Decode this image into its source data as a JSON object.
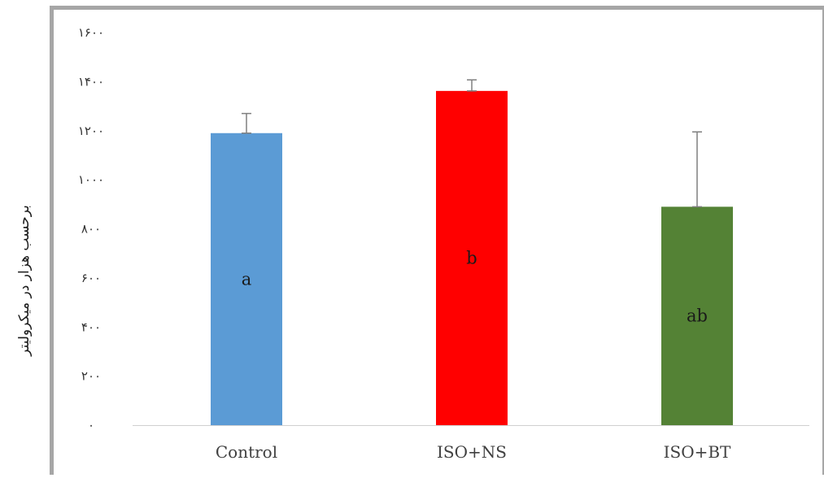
{
  "chart_data": {
    "type": "bar",
    "title": "",
    "xlabel": "",
    "ylabel": "برحسب هزار در میکرولیتر",
    "categories": [
      "Control",
      "ISO+NS",
      "ISO+BT"
    ],
    "values": [
      1190,
      1362,
      890
    ],
    "error_plus": [
      80,
      45,
      305
    ],
    "bar_labels": [
      "a",
      "b",
      "ab"
    ],
    "colors": [
      "#5b9bd5",
      "#ff0000",
      "#548235"
    ],
    "ylim": [
      0,
      1600
    ],
    "yticks": [
      0,
      200,
      400,
      600,
      800,
      1000,
      1200,
      1400,
      1600
    ],
    "ytick_labels": [
      "۰",
      "۲۰۰",
      "۴۰۰",
      "۶۰۰",
      "۸۰۰",
      "۱۰۰۰",
      "۱۲۰۰",
      "۱۴۰۰",
      "۱۶۰۰"
    ],
    "grid": false,
    "legend": "none"
  }
}
